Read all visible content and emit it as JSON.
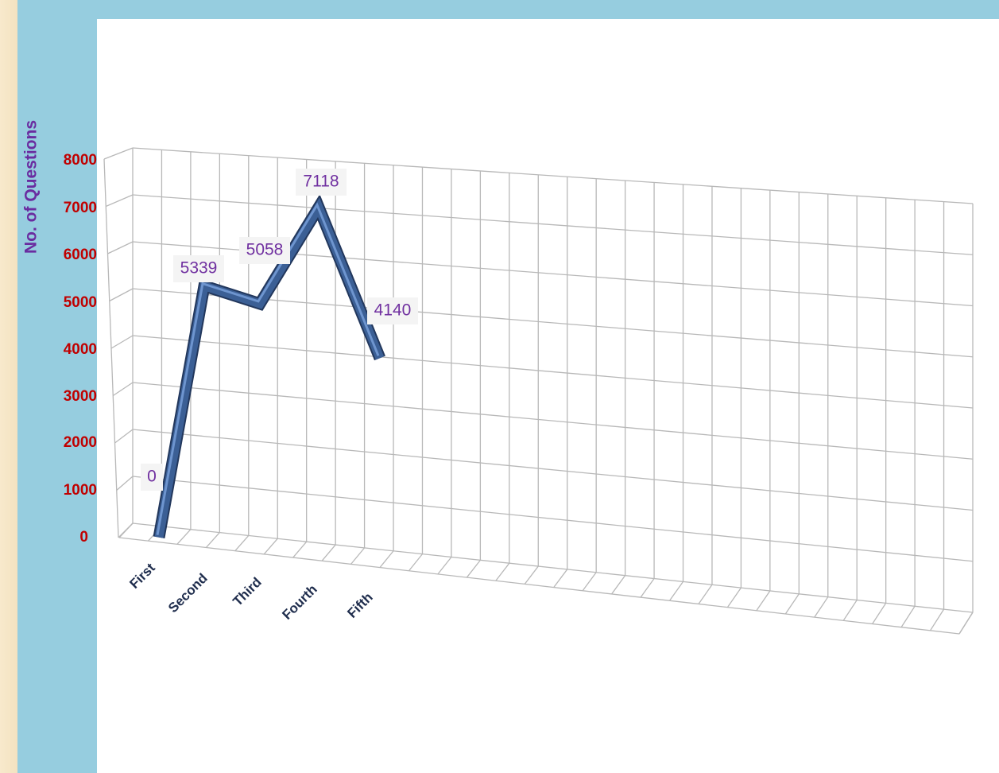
{
  "chart_data": {
    "type": "line",
    "title": "",
    "xlabel": "",
    "ylabel": "No. of Questions",
    "categories": [
      "First",
      "Second",
      "Third",
      "Fourth",
      "Fifth"
    ],
    "series": [
      {
        "values": [
          0,
          5339,
          5058,
          7118,
          4140
        ]
      }
    ],
    "ylim": [
      0,
      8000
    ],
    "yticks": [
      0,
      1000,
      2000,
      3000,
      4000,
      5000,
      6000,
      7000,
      8000
    ],
    "grid": true,
    "legend": "none",
    "style": "3d-line",
    "colors": {
      "line": "#3b5f95",
      "line_highlight": "#6e95cf",
      "data_label": "#7030a0",
      "y_tick_label": "#c00000",
      "y_title": "#6a2ca0",
      "x_tick_label": "#1f2d4d",
      "panel_bg": "#96cddf"
    }
  }
}
